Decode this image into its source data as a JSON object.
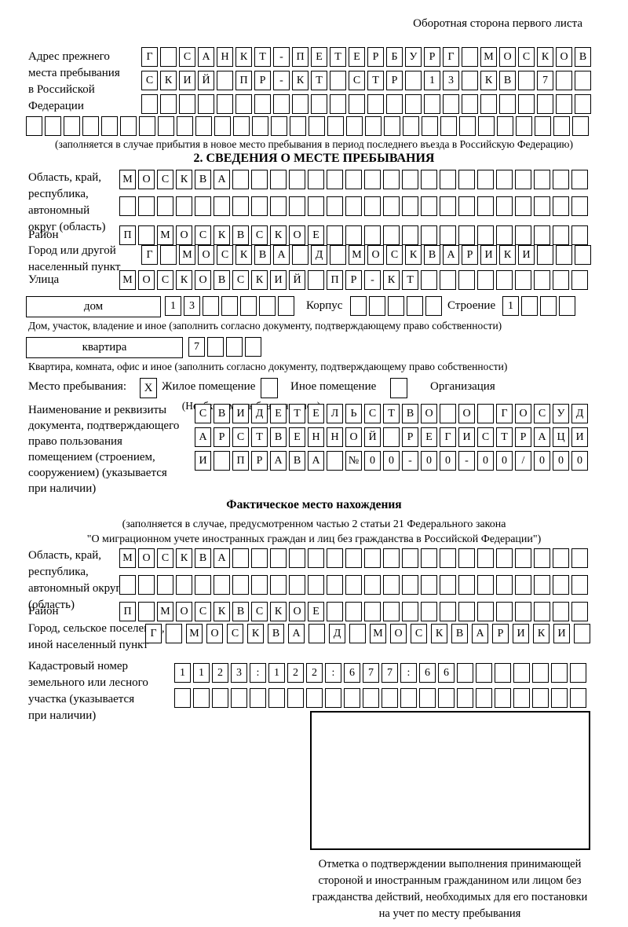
{
  "page": {
    "header_note": "Оборотная сторона первого листа"
  },
  "prev_address": {
    "label": [
      "Адрес прежнего",
      "места пребывания",
      "в Российской",
      "Федерации"
    ],
    "row1": "Г САНКТ-ПЕТЕРБУРГ МОСКОВ",
    "row2": "СКИЙ ПР-КТ СТР 13 КВ 7  ",
    "row3": "                        ",
    "row4": "                              ",
    "caption": "(заполняется в случае прибытия в новое место пребывания в период последнего въезда в Российскую Федерацию)"
  },
  "section2": {
    "title": "2. СВЕДЕНИЯ О МЕСТЕ ПРЕБЫВАНИЯ",
    "oblast": {
      "label": [
        "Область, край,",
        "республика,",
        "автономный",
        "округ (область)"
      ],
      "row1": "МОСКВА                   ",
      "row2": "                         "
    },
    "raion": {
      "label": "Район",
      "row": "П МОСКВСКОЕ              "
    },
    "gorod": {
      "label": [
        "Город или другой",
        "населенный пункт"
      ],
      "row": "Г МОСКВА Д МОСКВАРИКИ   "
    },
    "ulitsa": {
      "label": "Улица",
      "row": "МОСКОВСКИЙ ПР-КТ         "
    },
    "dom": {
      "box_label": "дом",
      "cells": "13     ",
      "korpus_label": "Корпус",
      "korpus_cells": "     ",
      "stroenie_label": "Строение",
      "stroenie_cells": "1   ",
      "caption": "Дом, участок, владение и иное (заполнить согласно документу, подтверждающему право собственности)"
    },
    "kvartira": {
      "box_label": "квартира",
      "cells": "7   ",
      "caption": "Квартира, комната, офис и иное (заполнить согласно документу, подтверждающему право собственности)"
    },
    "mesto": {
      "label": "Место пребывания:",
      "zhiloe_value": "X",
      "zhiloe_label": "Жилое помещение",
      "inoe_value": "",
      "inoe_label": "Иное помещение",
      "org_value": "",
      "org_label": "Организация",
      "note": "(Необходимо выбрать нужное)"
    },
    "doc": {
      "label": [
        "Наименование и реквизиты",
        "документа, подтверждающего",
        "право пользования",
        "помещением (строением,",
        "сооружением) (указывается",
        "при наличии)"
      ],
      "row1": "СВИДЕТЕЛЬСТВО О ГОСУД",
      "row2": "АРСТВЕННОЙ РЕГИСТРАЦИ",
      "row3": "И ПРАВА №00-00-00/000"
    }
  },
  "fact": {
    "title": "Фактическое место нахождения",
    "note": [
      "(заполняется в случае, предусмотренном частью 2 статьи 21 Федерального закона",
      "\"О миграционном учете иностранных граждан и лиц без гражданства в Российской Федерации\")"
    ],
    "oblast": {
      "label": [
        "Область, край,",
        "республика,",
        "автономный округ",
        "(область)"
      ],
      "row1": "МОСКВА                   ",
      "row2": "                         "
    },
    "raion": {
      "label": "Район",
      "row": "П МОСКВСКОЕ              "
    },
    "gorod": {
      "label": [
        "Город, сельское поселение,",
        "иной населенный пункт"
      ],
      "row": "Г МОСКВА Д МОСКВАРИКИ "
    },
    "kadastr": {
      "label": [
        "Кадастровый номер",
        "земельного или лесного",
        "участка (указывается",
        "при наличии)"
      ],
      "row1": "1123:122:677:66       ",
      "row2": "                      "
    },
    "stamp_caption": [
      "Отметка о подтверждении выполнения принимающей",
      "стороной и иностранным гражданином или лицом без",
      "гражданства действий, необходимых для его постановки",
      "на учет по месту пребывания"
    ]
  }
}
